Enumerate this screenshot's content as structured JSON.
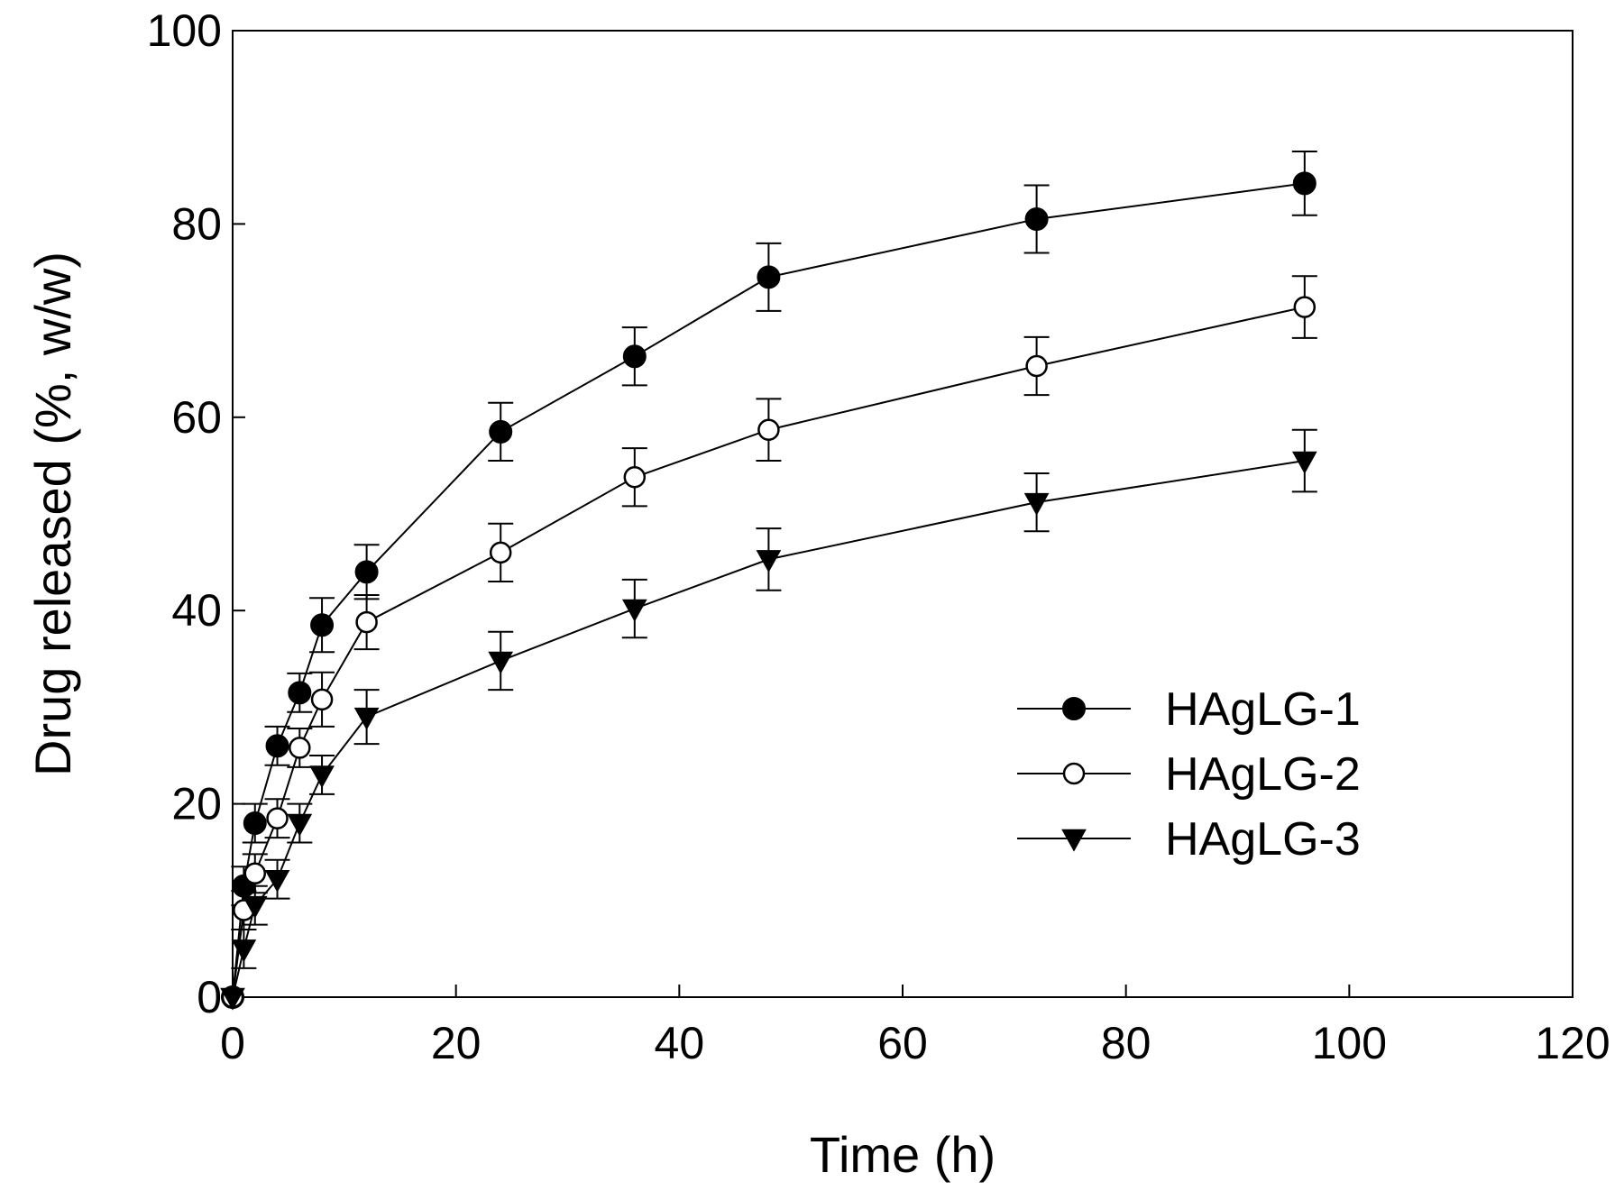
{
  "chart_data": {
    "type": "line",
    "title": "",
    "xlabel": "Time (h)",
    "ylabel": "Drug released (%, w/w)",
    "xlim": [
      0,
      120
    ],
    "ylim": [
      0,
      100
    ],
    "x_ticks": [
      0,
      20,
      40,
      60,
      80,
      100,
      120
    ],
    "y_ticks": [
      0,
      20,
      40,
      60,
      80,
      100
    ],
    "grid": false,
    "legend_position": "center-right",
    "x": [
      0,
      1,
      2,
      4,
      6,
      8,
      12,
      24,
      36,
      48,
      72,
      96
    ],
    "series": [
      {
        "name": "HAgLG-1",
        "marker": "filled-circle",
        "values": [
          0,
          11.5,
          18,
          26,
          31.5,
          38.5,
          44,
          58.5,
          66.3,
          74.5,
          80.5,
          84.2
        ],
        "errors": [
          0,
          2,
          2,
          2,
          2,
          2.8,
          2.8,
          3,
          3,
          3.5,
          3.5,
          3.3
        ]
      },
      {
        "name": "HAgLG-2",
        "marker": "open-circle",
        "values": [
          0,
          9,
          12.8,
          18.5,
          25.8,
          30.8,
          38.8,
          46,
          53.8,
          58.7,
          65.3,
          71.4
        ],
        "errors": [
          0,
          2,
          2,
          2,
          2,
          2.8,
          2.8,
          3,
          3,
          3.2,
          3,
          3.2
        ]
      },
      {
        "name": "HAgLG-3",
        "marker": "filled-triangle-down",
        "values": [
          0,
          5,
          9.5,
          12.2,
          18,
          23,
          29,
          34.8,
          40.2,
          45.3,
          51.2,
          55.5
        ],
        "errors": [
          0,
          2,
          2,
          2,
          2,
          2,
          2.8,
          3,
          3,
          3.2,
          3,
          3.2
        ]
      }
    ]
  }
}
